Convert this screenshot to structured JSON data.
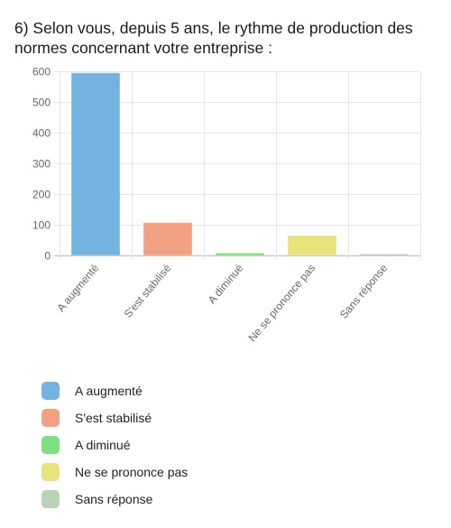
{
  "title": "6) Selon vous, depuis 5 ans, le rythme de production des normes concernant votre entreprise :",
  "chart_data": {
    "type": "bar",
    "categories": [
      "A augmenté",
      "S'est stabilisé",
      "A diminué",
      "Ne se prononce pas",
      "Sans réponse"
    ],
    "values": [
      595,
      107,
      8,
      65,
      5
    ],
    "colors": [
      "#74b3e0",
      "#f2a184",
      "#7ee07e",
      "#e6e47a",
      "#b8d3b5"
    ],
    "ylim": [
      0,
      600
    ],
    "yticks": [
      0,
      100,
      200,
      300,
      400,
      500,
      600
    ],
    "grid": true,
    "legend": "bottom"
  }
}
